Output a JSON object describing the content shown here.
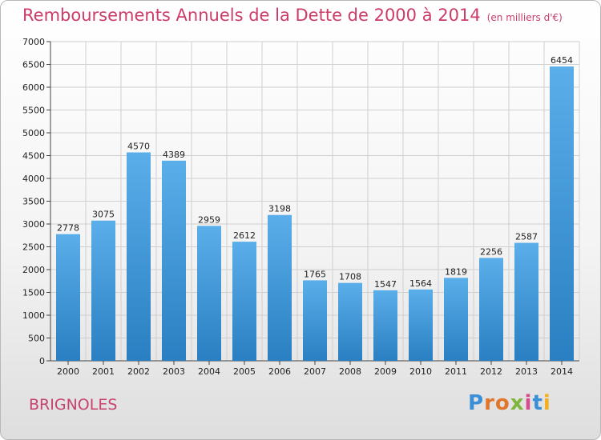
{
  "title": "Remboursements Annuels de la Dette de 2000 à 2014",
  "subtitle": "(en milliers d'€)",
  "commune": "BRIGNOLES",
  "logo_text": "Proxiti",
  "colors": {
    "title": "#cc3c68",
    "bar_light": "#5aaee9",
    "bar_dark": "#2a7fc2",
    "grid": "#cfcfcf"
  },
  "chart_data": {
    "type": "bar",
    "title": "Remboursements Annuels de la Dette de 2000 à 2014",
    "subtitle": "(en milliers d'€)",
    "categories": [
      "2000",
      "2001",
      "2002",
      "2003",
      "2004",
      "2005",
      "2006",
      "2007",
      "2008",
      "2009",
      "2010",
      "2011",
      "2012",
      "2013",
      "2014"
    ],
    "values": [
      2778,
      3075,
      4570,
      4389,
      2959,
      2612,
      3198,
      1765,
      1708,
      1547,
      1564,
      1819,
      2256,
      2587,
      6454
    ],
    "yticks": [
      0,
      500,
      1000,
      1500,
      2000,
      2500,
      3000,
      3500,
      4000,
      4500,
      5000,
      5500,
      6000,
      6500,
      7000
    ],
    "ylim": [
      0,
      7000
    ],
    "grid": true,
    "data_labels": true
  }
}
